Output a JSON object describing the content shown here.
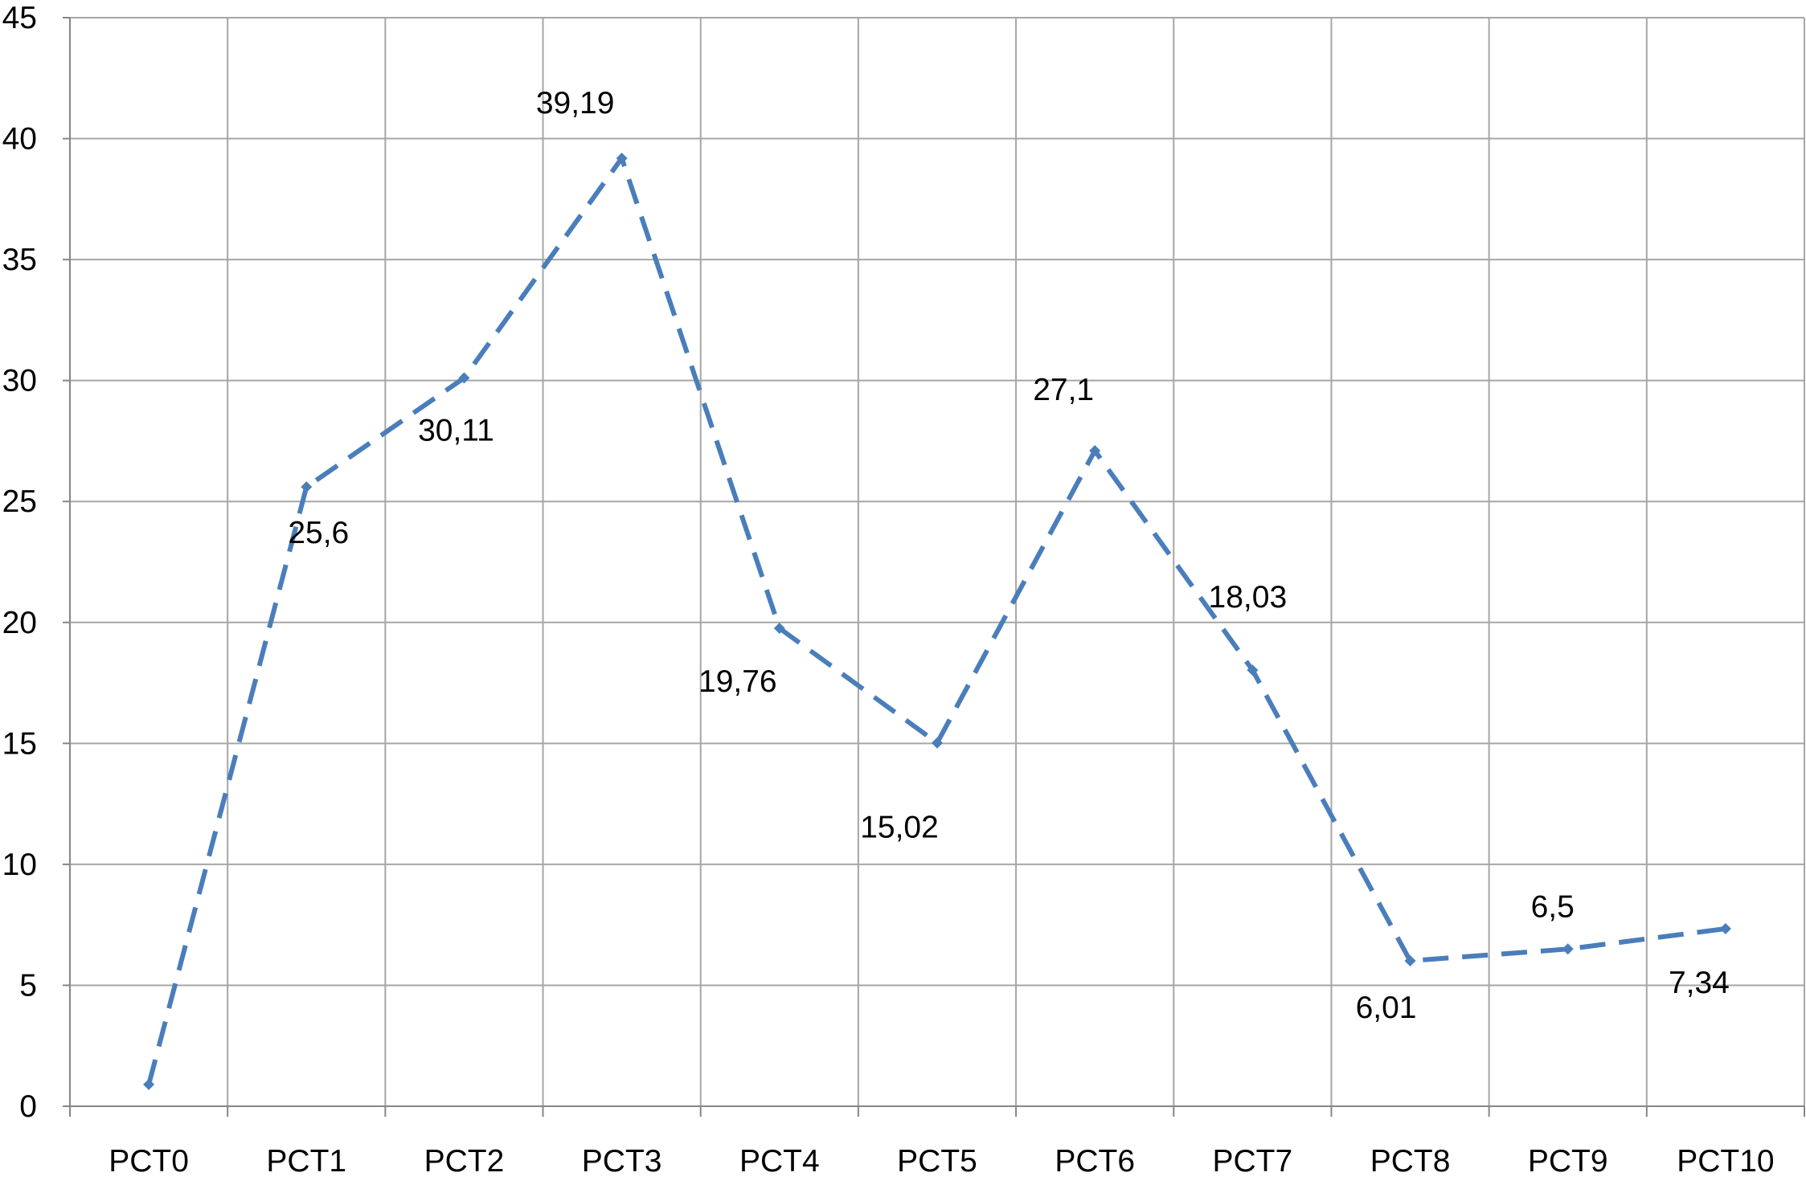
{
  "colors": {
    "series": "#4a7ebb",
    "grid": "#a6a6a6",
    "axis": "#868686",
    "text": "#000000",
    "background": "#ffffff"
  },
  "chart_data": {
    "type": "line",
    "title": "",
    "xlabel": "",
    "ylabel": "",
    "categories": [
      "PCT0",
      "PCT1",
      "PCT2",
      "PCT3",
      "PCT4",
      "PCT5",
      "PCT6",
      "PCT7",
      "PCT8",
      "PCT9",
      "PCT10"
    ],
    "series": [
      {
        "values": [
          0.9,
          25.6,
          30.11,
          39.19,
          19.76,
          15.02,
          27.1,
          18.03,
          6.01,
          6.5,
          7.34
        ],
        "data_labels": [
          "",
          "25,6",
          "30,11",
          "39,19",
          "19,76",
          "15,02",
          "27,1",
          "18,03",
          "6,01",
          "6,5",
          "7,34"
        ],
        "line_style": "dashed",
        "marker": "diamond"
      }
    ],
    "ylim": [
      0,
      45
    ],
    "y_ticks": [
      0,
      5,
      10,
      15,
      20,
      25,
      30,
      35,
      40,
      45
    ],
    "y_tick_labels": [
      "0",
      "5",
      "10",
      "15",
      "20",
      "25",
      "30",
      "35",
      "40",
      "45"
    ],
    "grid": {
      "horizontal": true,
      "vertical": true
    },
    "legend": "none"
  }
}
